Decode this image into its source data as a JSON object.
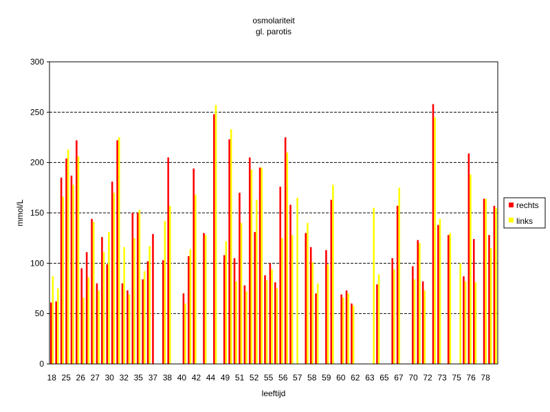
{
  "chart_data": {
    "type": "bar",
    "title": "osmolariteit",
    "subtitle": "gl. parotis",
    "xlabel": "leeftijd",
    "ylabel": "mmol/L",
    "ylim": [
      0,
      300
    ],
    "yticks": [
      0,
      50,
      100,
      150,
      200,
      250,
      300
    ],
    "grid": true,
    "legend_position": "right",
    "xtick_labels": [
      "18",
      "25",
      "26",
      "27",
      "30",
      "32",
      "35",
      "37",
      "38",
      "40",
      "42",
      "44",
      "49",
      "51",
      "52",
      "55",
      "56",
      "57",
      "58",
      "59",
      "60",
      "62",
      "63",
      "65",
      "67",
      "70",
      "72",
      "73",
      "75",
      "76",
      "78"
    ],
    "series": [
      {
        "name": "rechts",
        "color": "#ff0000",
        "values": [
          61,
          62,
          185,
          204,
          187,
          222,
          95,
          111,
          144,
          80,
          126,
          99,
          181,
          222,
          80,
          73,
          150,
          150,
          84,
          102,
          129,
          null,
          103,
          205,
          null,
          null,
          70,
          107,
          194,
          null,
          130,
          null,
          248,
          null,
          108,
          223,
          105,
          170,
          78,
          205,
          131,
          195,
          88,
          100,
          81,
          176,
          225,
          158,
          null,
          null,
          130,
          116,
          70,
          null,
          113,
          163,
          null,
          69,
          73,
          60,
          null,
          null,
          null,
          null,
          79,
          null,
          null,
          105,
          157,
          null,
          null,
          97,
          123,
          82,
          null,
          258,
          138,
          null,
          128,
          null,
          null,
          87,
          209,
          124,
          null,
          164,
          128,
          157
        ]
      },
      {
        "name": "links",
        "color": "#ffff00",
        "values": [
          87,
          75,
          166,
          213,
          178,
          206,
          66,
          86,
          141,
          73,
          111,
          131,
          170,
          225,
          116,
          69,
          125,
          153,
          92,
          117,
          null,
          null,
          142,
          157,
          null,
          null,
          60,
          114,
          168,
          null,
          128,
          null,
          257,
          null,
          122,
          233,
          82,
          140,
          72,
          193,
          163,
          195,
          83,
          94,
          75,
          125,
          210,
          128,
          165,
          null,
          140,
          101,
          80,
          null,
          99,
          178,
          null,
          66,
          70,
          58,
          null,
          null,
          null,
          155,
          89,
          null,
          null,
          94,
          175,
          null,
          null,
          84,
          120,
          73,
          null,
          245,
          144,
          null,
          130,
          null,
          100,
          82,
          188,
          81,
          null,
          164,
          115,
          155
        ]
      }
    ]
  }
}
